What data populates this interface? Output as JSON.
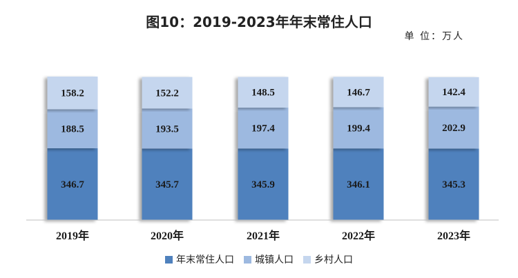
{
  "chart_data": {
    "type": "bar",
    "stacked": true,
    "title": "图10：2019-2023年年末常住人口",
    "unit_label": "单 位：万人",
    "categories": [
      "2019年",
      "2020年",
      "2021年",
      "2022年",
      "2023年"
    ],
    "series": [
      {
        "name": "年末常住人口",
        "color": "#4f81bd",
        "values": [
          346.7,
          345.7,
          345.9,
          346.1,
          345.3
        ]
      },
      {
        "name": "城镇人口",
        "color": "#9db9e0",
        "values": [
          188.5,
          193.5,
          197.4,
          199.4,
          202.9
        ]
      },
      {
        "name": "乡村人口",
        "color": "#c5d6ee",
        "values": [
          158.2,
          152.2,
          148.5,
          146.7,
          142.4
        ]
      }
    ],
    "grid": false,
    "legend_position": "bottom"
  }
}
